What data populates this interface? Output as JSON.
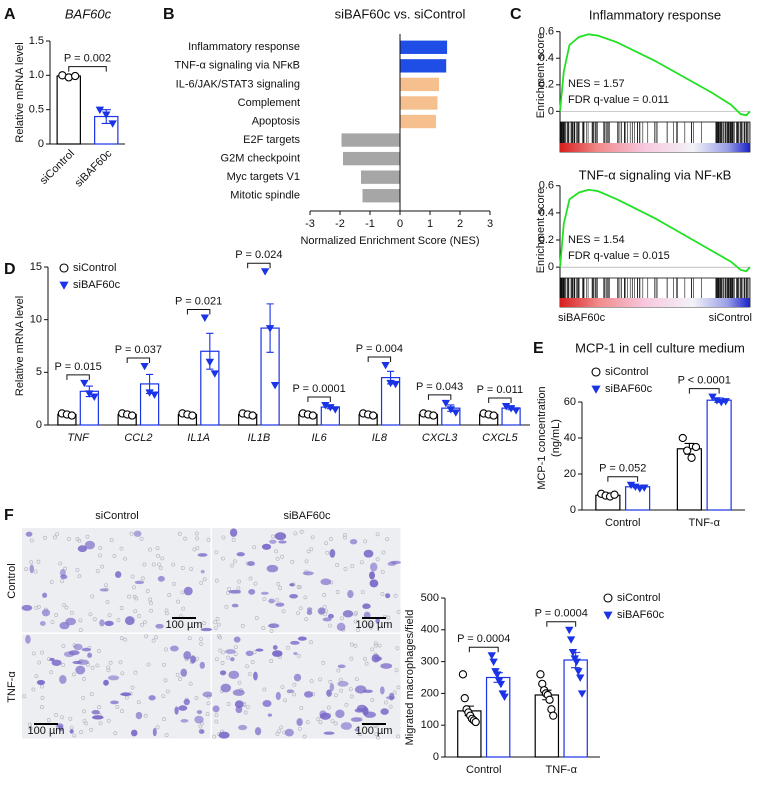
{
  "chart_data": [
    {
      "type": "bar",
      "panel": "A",
      "title": "BAF60c",
      "ylabel": "Relative mRNA level",
      "categories": [
        "siControl",
        "siBAF60c"
      ],
      "values": [
        0.99,
        0.4
      ],
      "errors": [
        0.02,
        0.1
      ],
      "points": [
        [
          1.0,
          0.97,
          0.99
        ],
        [
          0.5,
          0.43,
          0.3
        ]
      ],
      "colors": [
        "#000000",
        "#1a33e6"
      ],
      "markers": [
        "circle",
        "triangle"
      ],
      "ylim": [
        0,
        1.5
      ],
      "yticks": [
        0,
        0.5,
        {
          "value": 1,
          "label": "1.0"
        },
        1.5
      ],
      "annotation": "P = 0.002"
    },
    {
      "type": "hbar",
      "panel": "B",
      "title": "siBAF60c vs. siControl",
      "xlabel": "Normalized Enrichment Score (NES)",
      "categories": [
        "Inflammatory response",
        "TNF-α signaling via NFκB",
        "IL-6/JAK/STAT3 signaling",
        "Complement",
        "Apoptosis",
        "E2F targets",
        "G2M checkpoint",
        "Myc targets V1",
        "Mitotic spindle"
      ],
      "values": [
        1.57,
        1.54,
        1.3,
        1.25,
        1.2,
        -1.95,
        -1.9,
        -1.3,
        -1.25
      ],
      "colors": [
        "#1f4ee6",
        "#1f4ee6",
        "#f5c08e",
        "#f5c08e",
        "#f5c08e",
        "#a6a6a6",
        "#a6a6a6",
        "#a6a6a6",
        "#a6a6a6"
      ],
      "xlim": [
        -3,
        3
      ],
      "xticks": [
        -3,
        -2,
        -1,
        0,
        1,
        2,
        3
      ]
    },
    {
      "type": "gsea",
      "panel": "C",
      "title": "Inflammatory response",
      "ylabel": "Enrichment score",
      "color": "#22e022",
      "x": [
        0,
        2,
        5,
        10,
        15,
        20,
        30,
        40,
        50,
        60,
        70,
        80,
        90,
        95,
        98,
        100
      ],
      "values": [
        0,
        0.3,
        0.5,
        0.56,
        0.58,
        0.57,
        0.52,
        0.45,
        0.38,
        0.3,
        0.22,
        0.14,
        0.05,
        -0.02,
        -0.03,
        0
      ],
      "ylim": [
        -0.08,
        0.62
      ],
      "yticks": [
        0,
        0.2,
        0.4,
        0.6
      ],
      "annotations": [
        "NES = 1.57",
        "FDR q-value = 0.011"
      ]
    },
    {
      "type": "gsea",
      "title": "TNF-α signaling via NF-κB",
      "ylabel": "Enrichment score",
      "color": "#22e022",
      "x": [
        0,
        2,
        5,
        10,
        15,
        20,
        30,
        40,
        50,
        60,
        70,
        80,
        90,
        95,
        98,
        100
      ],
      "values": [
        0,
        0.32,
        0.5,
        0.55,
        0.57,
        0.56,
        0.5,
        0.43,
        0.36,
        0.28,
        0.2,
        0.12,
        0.04,
        -0.02,
        -0.03,
        0
      ],
      "ylim": [
        -0.08,
        0.62
      ],
      "yticks": [
        0,
        0.2,
        0.4,
        0.6
      ],
      "annotations": [
        "NES = 1.54",
        "FDR q-value = 0.015"
      ],
      "bottom_labels": [
        "siBAF60c",
        "siControl"
      ]
    },
    {
      "type": "grouped_bar",
      "panel": "D",
      "ylabel": "Relative mRNA level",
      "italic_categories": true,
      "categories": [
        "TNF",
        "CCL2",
        "IL1A",
        "IL1B",
        "IL6",
        "IL8",
        "CXCL3",
        "CXCL5"
      ],
      "series": [
        {
          "name": "siControl",
          "color": "#000000",
          "marker": "circle",
          "values": [
            1,
            1,
            1,
            1,
            1,
            1,
            1,
            1
          ],
          "errors": [
            0.08,
            0.07,
            0.08,
            0.08,
            0.07,
            0.07,
            0.07,
            0.08
          ],
          "points": [
            [
              1.1,
              1.0,
              0.9
            ],
            [
              1.1,
              1.0,
              0.9
            ],
            [
              1.1,
              1.0,
              0.9
            ],
            [
              1.1,
              1.0,
              0.9
            ],
            [
              1.1,
              1.0,
              0.9
            ],
            [
              1.1,
              1.0,
              0.9
            ],
            [
              1.1,
              1.0,
              0.9
            ],
            [
              1.1,
              1.0,
              0.9
            ]
          ]
        },
        {
          "name": "siBAF60c",
          "color": "#1a33e6",
          "marker": "triangle",
          "values": [
            3.2,
            3.9,
            7.0,
            9.2,
            1.7,
            4.5,
            1.6,
            1.6
          ],
          "errors": [
            0.5,
            0.9,
            1.7,
            2.3,
            0.15,
            0.6,
            0.3,
            0.15
          ],
          "points": [
            [
              4.0,
              3.0,
              2.7
            ],
            [
              5.6,
              3.1,
              2.9
            ],
            [
              10.2,
              6.0,
              4.9
            ],
            [
              14.6,
              9.2,
              3.8
            ],
            [
              1.9,
              1.7,
              1.5
            ],
            [
              5.7,
              4.0,
              3.9
            ],
            [
              2.1,
              1.5,
              1.2
            ],
            [
              1.8,
              1.6,
              1.4
            ]
          ]
        }
      ],
      "ylim": [
        0,
        15
      ],
      "yticks": [
        0,
        5,
        10,
        15
      ],
      "annotations": [
        "P = 0.015",
        "P = 0.037",
        "P = 0.021",
        "P = 0.024",
        "P = 0.0001",
        "P = 0.004",
        "P = 0.043",
        "P = 0.011"
      ]
    },
    {
      "type": "grouped_bar",
      "panel": "E",
      "title": "MCP-1 in cell culture medium",
      "ylabel": [
        "MCP-1 concentration",
        "(ng/mL)"
      ],
      "categories": [
        "Control",
        "TNF-α"
      ],
      "series": [
        {
          "name": "siControl",
          "color": "#000000",
          "marker": "circle",
          "values": [
            8.2,
            34
          ],
          "errors": [
            0.5,
            3
          ],
          "points": [
            [
              9,
              8,
              7.5,
              8.5
            ],
            [
              40,
              33,
              29,
              35
            ]
          ]
        },
        {
          "name": "siBAF60c",
          "color": "#1a33e6",
          "marker": "triangle",
          "values": [
            12.9,
            61
          ],
          "errors": [
            0.6,
            1.2
          ],
          "points": [
            [
              14,
              13,
              12,
              12.5
            ],
            [
              63,
              61,
              60,
              60.5
            ]
          ]
        }
      ],
      "ylim": [
        0,
        80
      ],
      "yticks": [
        0,
        20,
        40,
        60
      ],
      "annotations": [
        "P = 0.052",
        "P < 0.0001"
      ]
    },
    {
      "type": "grouped_bar",
      "ylabel": "Migrated macrophages/field",
      "categories": [
        "Control",
        "TNF-α"
      ],
      "series": [
        {
          "name": "siControl",
          "color": "#000000",
          "marker": "circle",
          "values": [
            145,
            195
          ],
          "errors": [
            15,
            15
          ],
          "points": [
            [
              260,
              185,
              150,
              140,
              130,
              120,
              115,
              110
            ],
            [
              260,
              230,
              210,
              200,
              195,
              180,
              150,
              130
            ]
          ]
        },
        {
          "name": "siBAF60c",
          "color": "#1a33e6",
          "marker": "triangle",
          "values": [
            250,
            305
          ],
          "errors": [
            15,
            24
          ],
          "points": [
            [
              320,
              300,
              270,
              260,
              240,
              230,
              200,
              190
            ],
            [
              400,
              370,
              330,
              310,
              300,
              270,
              250,
              200
            ]
          ]
        }
      ],
      "ylim": [
        0,
        500
      ],
      "yticks": [
        0,
        100,
        200,
        300,
        400,
        500
      ],
      "annotations": [
        "P = 0.0004",
        "P = 0.0004"
      ]
    }
  ],
  "micrographs": {
    "panel": "F",
    "columns": [
      "siControl",
      "siBAF60c"
    ],
    "rows": [
      "Control",
      "TNF-α"
    ],
    "scale_bar": "100 µm"
  }
}
